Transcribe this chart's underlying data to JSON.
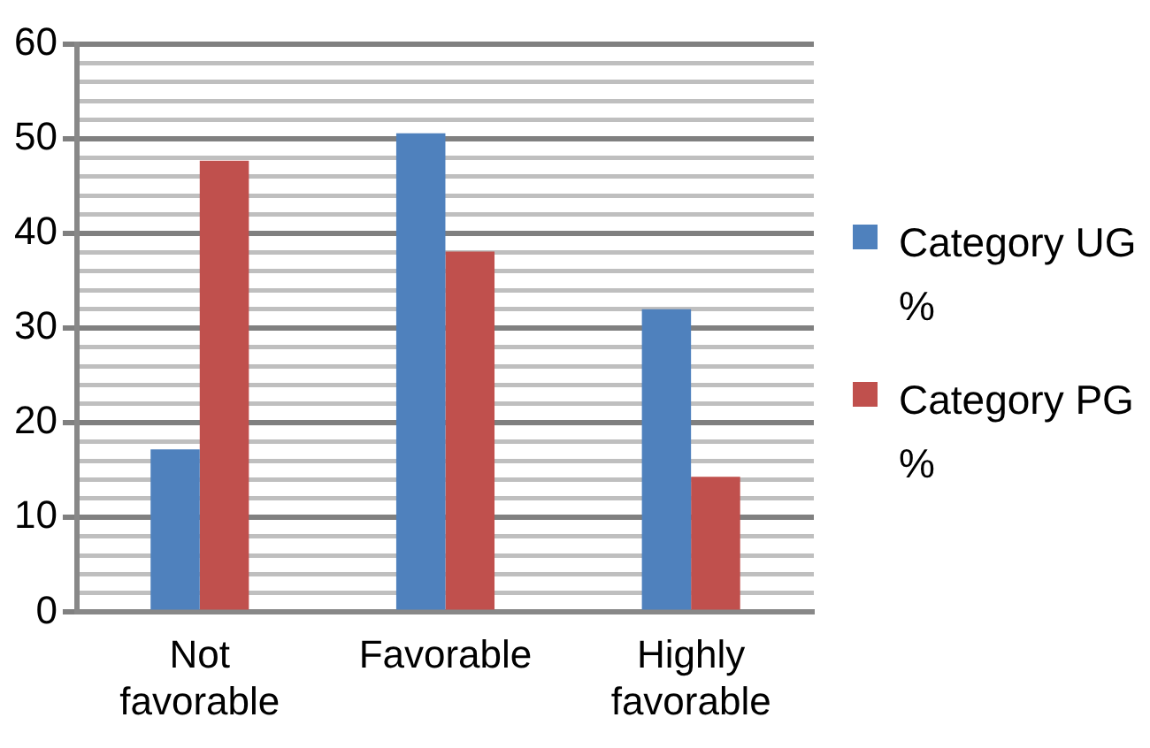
{
  "chart_data": {
    "type": "bar",
    "categories": [
      "Not favorable",
      "Favorable",
      "Highly favorable"
    ],
    "series": [
      {
        "name": "Category UG %",
        "color": "#4f81bd",
        "values": [
          17.2,
          50.6,
          32.0
        ]
      },
      {
        "name": "Category PG %",
        "color": "#c0504d",
        "values": [
          47.7,
          38.1,
          14.3
        ]
      }
    ],
    "ylim": [
      0,
      60
    ],
    "yticks": [
      0,
      {
        "value": 2,
        "label": null
      },
      {
        "value": 4,
        "label": null
      },
      {
        "value": 6,
        "label": null
      },
      {
        "value": 8,
        "label": null
      },
      10,
      {
        "value": 12,
        "label": null
      },
      {
        "value": 14,
        "label": null
      },
      {
        "value": 16,
        "label": null
      },
      {
        "value": 18,
        "label": null
      },
      20,
      {
        "value": 22,
        "label": null
      },
      {
        "value": 24,
        "label": null
      },
      {
        "value": 26,
        "label": null
      },
      {
        "value": 28,
        "label": null
      },
      30,
      {
        "value": 32,
        "label": null
      },
      {
        "value": 34,
        "label": null
      },
      {
        "value": 36,
        "label": null
      },
      {
        "value": 38,
        "label": null
      },
      40,
      {
        "value": 42,
        "label": null
      },
      {
        "value": 44,
        "label": null
      },
      {
        "value": 46,
        "label": null
      },
      {
        "value": 48,
        "label": null
      },
      50,
      {
        "value": 52,
        "label": null
      },
      {
        "value": 54,
        "label": null
      },
      {
        "value": 56,
        "label": null
      },
      {
        "value": 58,
        "label": null
      },
      60
    ],
    "grid": "y",
    "legend": "right"
  }
}
